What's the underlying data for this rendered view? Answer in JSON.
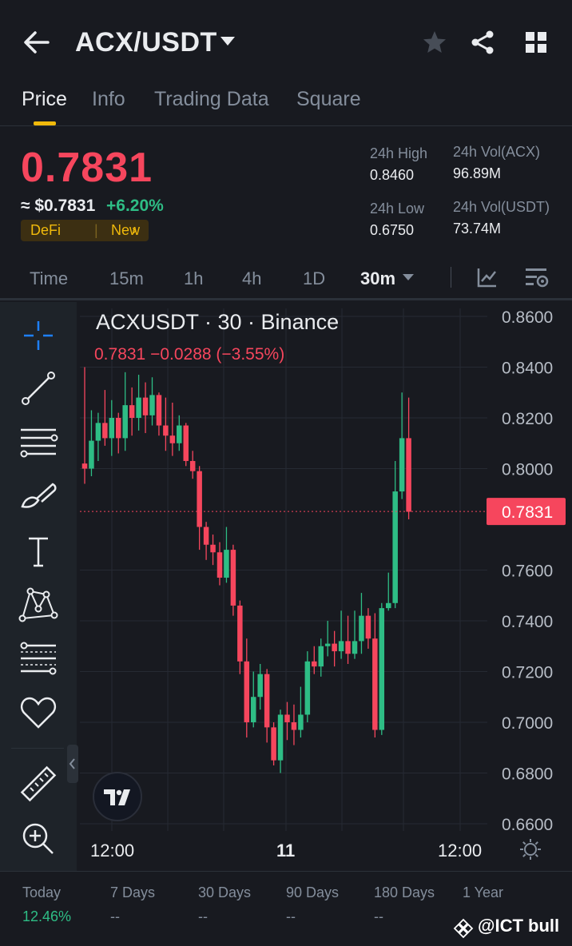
{
  "header": {
    "pair": "ACX/USDT",
    "tabs": [
      "Price",
      "Info",
      "Trading Data",
      "Square"
    ]
  },
  "ticker": {
    "last_price": "0.7831",
    "usd_price": "≈ $0.7831",
    "change_pct": "+6.20%",
    "tags": [
      "DeFi",
      "New"
    ],
    "high_label": "24h High",
    "high_value": "0.8460",
    "low_label": "24h Low",
    "low_value": "0.6750",
    "vol_base_label": "24h Vol(ACX)",
    "vol_base_value": "96.89M",
    "vol_quote_label": "24h Vol(USDT)",
    "vol_quote_value": "73.74M"
  },
  "intervals": [
    "Time",
    "15m",
    "1h",
    "4h",
    "1D",
    "30m"
  ],
  "chart_header": {
    "title": "ACXUSDT · 30 · Binance",
    "ohlc": "0.7831  −0.0288 (−3.55%)"
  },
  "colors": {
    "up": "#2ebd85",
    "down": "#f6465d",
    "background": "#181a20",
    "accent": "#f0b90b"
  },
  "chart_data": {
    "type": "candlestick",
    "interval": "30m",
    "y_ticks": [
      "0.8600",
      "0.8400",
      "0.8200",
      "0.8000",
      "0.7600",
      "0.7400",
      "0.7200",
      "0.7000",
      "0.6800",
      "0.6600"
    ],
    "ylim": [
      0.66,
      0.86
    ],
    "x_ticks": [
      "12:00",
      "11",
      "12:00"
    ],
    "last_price_label": "0.7831",
    "candles": [
      [
        0.802,
        0.8,
        0.84,
        0.794
      ],
      [
        0.8,
        0.811,
        0.823,
        0.797
      ],
      [
        0.811,
        0.818,
        0.822,
        0.803
      ],
      [
        0.818,
        0.812,
        0.831,
        0.809
      ],
      [
        0.812,
        0.82,
        0.827,
        0.805
      ],
      [
        0.82,
        0.812,
        0.822,
        0.806
      ],
      [
        0.812,
        0.825,
        0.838,
        0.807
      ],
      [
        0.825,
        0.82,
        0.832,
        0.813
      ],
      [
        0.82,
        0.828,
        0.837,
        0.815
      ],
      [
        0.828,
        0.821,
        0.834,
        0.814
      ],
      [
        0.821,
        0.829,
        0.836,
        0.817
      ],
      [
        0.829,
        0.817,
        0.83,
        0.813
      ],
      [
        0.817,
        0.813,
        0.828,
        0.807
      ],
      [
        0.813,
        0.81,
        0.826,
        0.805
      ],
      [
        0.81,
        0.817,
        0.821,
        0.807
      ],
      [
        0.817,
        0.803,
        0.818,
        0.801
      ],
      [
        0.803,
        0.799,
        0.807,
        0.796
      ],
      [
        0.799,
        0.777,
        0.801,
        0.768
      ],
      [
        0.777,
        0.77,
        0.779,
        0.764
      ],
      [
        0.77,
        0.767,
        0.774,
        0.762
      ],
      [
        0.767,
        0.757,
        0.771,
        0.754
      ],
      [
        0.757,
        0.768,
        0.777,
        0.755
      ],
      [
        0.768,
        0.746,
        0.77,
        0.742
      ],
      [
        0.746,
        0.724,
        0.748,
        0.719
      ],
      [
        0.724,
        0.7,
        0.733,
        0.694
      ],
      [
        0.7,
        0.71,
        0.72,
        0.698
      ],
      [
        0.71,
        0.719,
        0.723,
        0.705
      ],
      [
        0.719,
        0.698,
        0.721,
        0.692
      ],
      [
        0.698,
        0.685,
        0.7,
        0.683
      ],
      [
        0.685,
        0.703,
        0.705,
        0.68
      ],
      [
        0.703,
        0.7,
        0.708,
        0.693
      ],
      [
        0.7,
        0.697,
        0.707,
        0.691
      ],
      [
        0.697,
        0.703,
        0.714,
        0.694
      ],
      [
        0.703,
        0.724,
        0.728,
        0.7
      ],
      [
        0.724,
        0.722,
        0.73,
        0.719
      ],
      [
        0.722,
        0.73,
        0.733,
        0.718
      ],
      [
        0.73,
        0.731,
        0.74,
        0.726
      ],
      [
        0.731,
        0.728,
        0.736,
        0.722
      ],
      [
        0.728,
        0.732,
        0.744,
        0.725
      ],
      [
        0.732,
        0.727,
        0.742,
        0.723
      ],
      [
        0.727,
        0.732,
        0.744,
        0.725
      ],
      [
        0.732,
        0.742,
        0.751,
        0.727
      ],
      [
        0.742,
        0.733,
        0.745,
        0.729
      ],
      [
        0.733,
        0.697,
        0.743,
        0.694
      ],
      [
        0.697,
        0.745,
        0.747,
        0.695
      ],
      [
        0.745,
        0.747,
        0.759,
        0.744
      ],
      [
        0.747,
        0.791,
        0.803,
        0.745
      ],
      [
        0.791,
        0.812,
        0.83,
        0.788
      ],
      [
        0.812,
        0.783,
        0.828,
        0.78
      ]
    ]
  },
  "performance": {
    "labels": [
      "Today",
      "7 Days",
      "30 Days",
      "90 Days",
      "180 Days",
      "1 Year"
    ],
    "values": [
      "12.46%",
      "--",
      "--",
      "--",
      "--",
      ""
    ]
  },
  "watermark": "@ICT bull"
}
